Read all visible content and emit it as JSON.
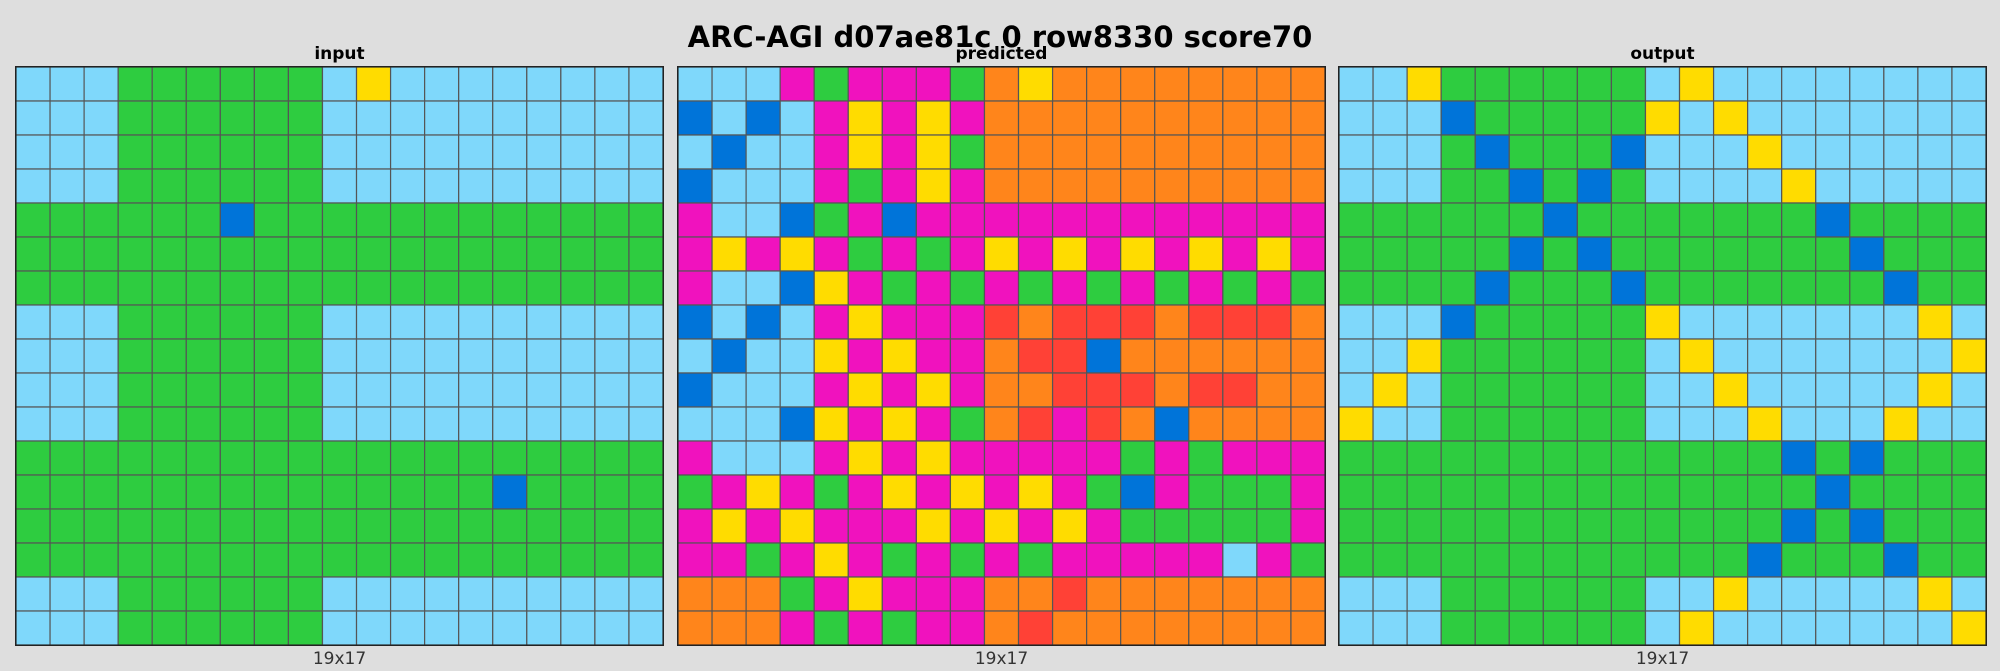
{
  "title": "ARC-AGI d07ae81c 0 row8330 score70",
  "palette": {
    "L": "#7fd8fb",
    "G": "#2ecc40",
    "B": "#0074d9",
    "Y": "#ffdc00",
    "M": "#f012be",
    "O": "#ff851b",
    "R": "#ff4136",
    "grid_line": "#555555"
  },
  "panels": [
    {
      "name": "input",
      "label": "input",
      "size_label": "19x17",
      "rows": [
        "LLLGGGGGGLYLLLLLLLL",
        "LLLGGGGGGLLLLLLLLLL",
        "LLLGGGGGGLLLLLLLLLL",
        "LLLGGGGGGLLLLLLLLLL",
        "GGGGGGBGGGGGGGGGGGG",
        "GGGGGGGGGGGGGGGGGGG",
        "GGGGGGGGGGGGGGGGGGG",
        "LLLGGGGGGLLLLLLLLLL",
        "LLLGGGGGGLLLLLLLLLL",
        "LLLGGGGGGLLLLLLLLLL",
        "LLLGGGGGGLLLLLLLLLL",
        "GGGGGGGGGGGGGGGGGGG",
        "GGGGGGGGGGGGGGBGGGG",
        "GGGGGGGGGGGGGGGGGGG",
        "GGGGGGGGGGGGGGGGGGG",
        "LLLGGGGGGLLLLLLLLLL",
        "LLLGGGGGGLLLLLLLLLL"
      ]
    },
    {
      "name": "predicted",
      "label": "predicted",
      "size_label": "19x17",
      "rows": [
        "LLLMGMMMGOYOOOOOOOO",
        "BLBLMYMYMOOOOOOOOOO",
        "LBLLMYMYGOOOOOOOOOO",
        "BLLLMGMYMOOOOOOOOOO",
        "MLLBGMBMMMMMMMMMMMM",
        "MYMYMGMGMYMYMYMYMYM",
        "MLLBYMGMGMGMGMGMGMG",
        "BLBLMYMMMRORRRORRRO",
        "LBLLYMYMMORRBOOOOOO",
        "BLLLMYMYMOORRRORROO",
        "LLLBYMYMGORMROBOOOO",
        "MLLLMYMYMMMMMGMGMMM",
        "GMYMGMYMYMYMGBMGGGM",
        "MYMYMMMYMYMYMGGGGGM",
        "MMGMYMGMGMGMMMMMLMG",
        "OOOGMYMMMOOROOOOOOO",
        "OOOMGMGMMOROOOOOOOO"
      ]
    },
    {
      "name": "output",
      "label": "output",
      "size_label": "19x17",
      "rows": [
        "LLYGGGGGGLYLLLLLLLL",
        "LLLBGGGGGYLYLLLLLLL",
        "LLLGBGGGBLLLYLLLLLL",
        "LLLGGBGBGLLLLYLLLLL",
        "GGGGGGBGGGGGGGBGGGG",
        "GGGGGBGBGGGGGGGBGGG",
        "GGGGBGGGBGGGGGGGBGG",
        "LLLBGGGGGYLLLLLLLYL",
        "LLYGGGGGGLYLLLLLLLY",
        "LYLGGGGGGLLYLLLLLYL",
        "YLLGGGGGGLLLYLLLYLL",
        "GGGGGGGGGGGGGBGBGGG",
        "GGGGGGGGGGGGGGBGGGG",
        "GGGGGGGGGGGGGBGBGGG",
        "GGGGGGGGGGGGBGGGBGG",
        "LLLGGGGGGLLYLLLLLYL",
        "LLLGGGGGGLYLLLLLLLY"
      ]
    }
  ]
}
